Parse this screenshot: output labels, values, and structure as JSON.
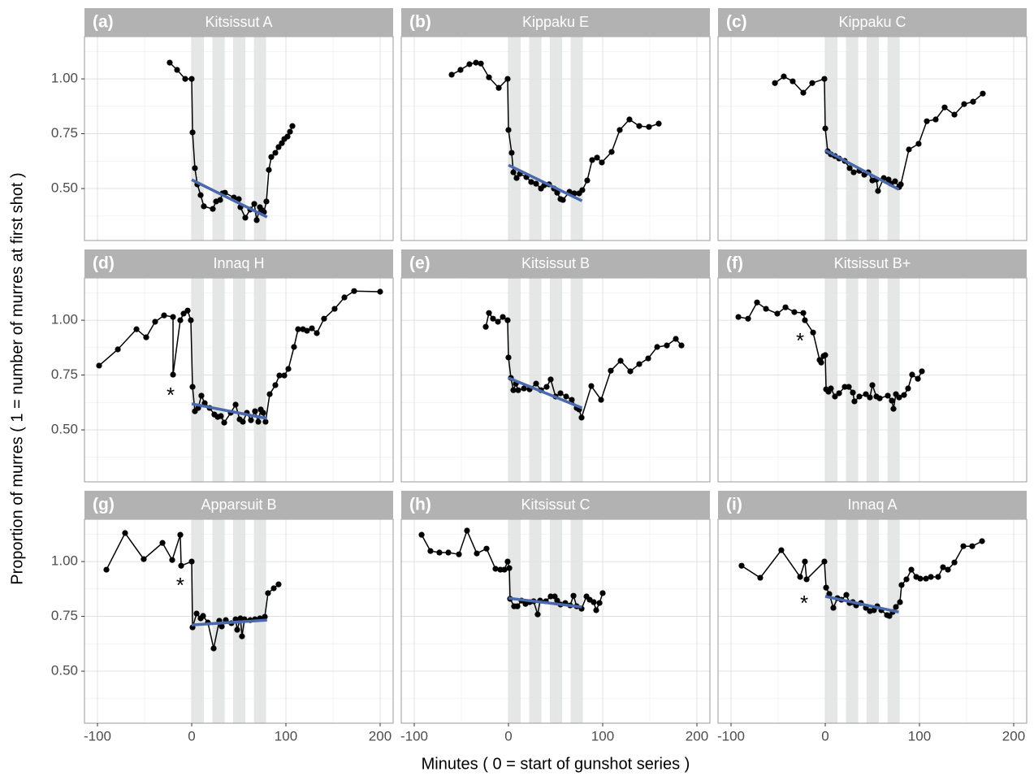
{
  "x_label": "Minutes ( 0 = start of gunshot series )",
  "y_label": "Proportion of murres ( 1 = number of murres at first shot )",
  "xlim": [
    -113.8,
    213.8
  ],
  "ylim": [
    0.263,
    1.193
  ],
  "xticks": [
    -100,
    0,
    100,
    200
  ],
  "yticks": [
    {
      "value": 0.5,
      "label": "0.50"
    },
    {
      "value": 0.75,
      "label": "0.75"
    },
    {
      "value": 1,
      "label": "1.00"
    }
  ],
  "grid": true,
  "shade_color": "#e2e3e3",
  "shaded_intervals": [
    [
      0,
      13
    ],
    [
      22,
      35
    ],
    [
      44,
      57
    ],
    [
      66,
      79
    ]
  ],
  "chart_data": [
    {
      "type": "line",
      "tag": "(a)",
      "title": "Kitsissut A",
      "color": "#000000",
      "x": [
        -23.3,
        -15.5,
        -6.9,
        0,
        0.9,
        3.4,
        6,
        9.5,
        12.9,
        22.4,
        25.9,
        30.2,
        32.8,
        35.3,
        44.8,
        50,
        51.7,
        56.9,
        62.1,
        66.4,
        69,
        72.4,
        75,
        76.7,
        79.3,
        81.9,
        84.5,
        88.8,
        92.2,
        95.7,
        98.3,
        101.7,
        104.3,
        106.9
      ],
      "values": [
        1.074,
        1.041,
        1.0,
        1.0,
        0.756,
        0.593,
        0.519,
        0.47,
        0.419,
        0.407,
        0.441,
        0.448,
        0.478,
        0.481,
        0.459,
        0.452,
        0.415,
        0.367,
        0.404,
        0.43,
        0.356,
        0.415,
        0.4,
        0.393,
        0.441,
        0.585,
        0.644,
        0.663,
        0.689,
        0.707,
        0.726,
        0.737,
        0.759,
        0.785
      ],
      "trend": {
        "color": "#4a6aad",
        "x": [
          0,
          80
        ],
        "y": [
          0.54,
          0.37
        ]
      }
    },
    {
      "type": "line",
      "tag": "(b)",
      "title": "Kippaku E",
      "color": "#000000",
      "x": [
        -60.3,
        -50.9,
        -41.4,
        -34.5,
        -29.3,
        -20.7,
        -10.3,
        -0.9,
        0,
        3.4,
        5.2,
        8.6,
        12.1,
        19,
        24.1,
        29.3,
        34.5,
        37.9,
        43.1,
        48.3,
        51.7,
        55.2,
        57.8,
        64.7,
        69.8,
        75,
        78.4,
        83.6,
        88.8,
        94,
        99.1,
        109.5,
        118.1,
        128.4,
        138.8,
        149.1,
        159.5
      ],
      "values": [
        1.019,
        1.041,
        1.067,
        1.074,
        1.07,
        1.007,
        0.959,
        1.0,
        0.767,
        0.663,
        0.574,
        0.548,
        0.567,
        0.552,
        0.53,
        0.522,
        0.5,
        0.515,
        0.519,
        0.5,
        0.481,
        0.452,
        0.448,
        0.485,
        0.478,
        0.478,
        0.493,
        0.537,
        0.63,
        0.641,
        0.619,
        0.667,
        0.767,
        0.815,
        0.785,
        0.781,
        0.796
      ],
      "trend": {
        "color": "#4a6aad",
        "x": [
          0,
          78
        ],
        "y": [
          0.607,
          0.444
        ]
      }
    },
    {
      "type": "line",
      "tag": "(c)",
      "title": "Kippaku C",
      "color": "#000000",
      "x": [
        -53.4,
        -44,
        -34.5,
        -23.3,
        -13.8,
        -0.9,
        0,
        2.6,
        6,
        10.3,
        14.7,
        20.7,
        25.9,
        30.2,
        36.2,
        41.4,
        45.7,
        50,
        54.3,
        56,
        62.1,
        67.2,
        69.8,
        74.1,
        78.4,
        80.2,
        88.8,
        99.1,
        107.8,
        117.2,
        126.7,
        137.1,
        147.4,
        156.9,
        167.2
      ],
      "values": [
        0.981,
        1.011,
        0.989,
        0.937,
        0.981,
        1.0,
        0.774,
        0.67,
        0.656,
        0.648,
        0.637,
        0.626,
        0.593,
        0.574,
        0.581,
        0.563,
        0.574,
        0.537,
        0.541,
        0.489,
        0.548,
        0.541,
        0.522,
        0.533,
        0.507,
        0.519,
        0.678,
        0.704,
        0.807,
        0.815,
        0.87,
        0.837,
        0.885,
        0.896,
        0.933
      ],
      "trend": {
        "color": "#4a6aad",
        "x": [
          0,
          78
        ],
        "y": [
          0.674,
          0.496
        ]
      }
    },
    {
      "type": "line",
      "tag": "(d)",
      "title": "Innaq H",
      "color": "#000000",
      "x": [
        -98.3,
        -78.4,
        -58.6,
        -48.3,
        -38.8,
        -29.3,
        -19.8,
        -19.8,
        -12.1,
        -8.6,
        -4.3,
        -0.9,
        0.9,
        3.4,
        6.9,
        10.3,
        13.8,
        19,
        24.1,
        27.6,
        31,
        34.5,
        41.4,
        46.6,
        50.9,
        54.3,
        58.6,
        62.9,
        67.2,
        70.7,
        73.3,
        75.9,
        78.4,
        82.8,
        88.8,
        93.1,
        98.3,
        102.6,
        108.6,
        112.9,
        118.1,
        122.4,
        127.6,
        132.8,
        140.5,
        151.7,
        162.1,
        172.4,
        200
      ],
      "values": [
        0.793,
        0.867,
        0.959,
        0.922,
        0.993,
        1.022,
        1.015,
        0.752,
        1.0,
        1.03,
        1.044,
        1.0,
        0.696,
        0.585,
        0.6,
        0.656,
        0.622,
        0.6,
        0.57,
        0.559,
        0.563,
        0.533,
        0.578,
        0.615,
        0.548,
        0.537,
        0.578,
        0.544,
        0.585,
        0.537,
        0.593,
        0.578,
        0.537,
        0.663,
        0.704,
        0.748,
        0.748,
        0.778,
        0.878,
        0.959,
        0.959,
        0.952,
        0.963,
        0.941,
        1.007,
        1.052,
        1.104,
        1.133,
        1.13
      ],
      "trend": {
        "color": "#4a6aad",
        "x": [
          0,
          80
        ],
        "y": [
          0.619,
          0.552
        ]
      },
      "annotations": [
        {
          "text": "*",
          "x": -22.4,
          "y": 0.674
        }
      ]
    },
    {
      "type": "line",
      "tag": "(e)",
      "title": "Kitsissut B",
      "color": "#000000",
      "x": [
        -24.1,
        -20.7,
        -16.4,
        -11.2,
        -6,
        -0.9,
        0,
        2.6,
        5.2,
        7.8,
        10.3,
        16.4,
        22.4,
        29.3,
        34.5,
        40.5,
        44.8,
        50,
        55.2,
        61.2,
        67.2,
        72.4,
        75,
        77.6,
        87.9,
        98.3,
        108.6,
        119,
        129.3,
        138.8,
        148.3,
        157.8,
        168.1,
        177.6,
        183.6
      ],
      "values": [
        0.97,
        1.033,
        1.007,
        0.993,
        1.015,
        1.0,
        0.83,
        0.737,
        0.681,
        0.711,
        0.681,
        0.689,
        0.685,
        0.711,
        0.681,
        0.696,
        0.73,
        0.652,
        0.667,
        0.652,
        0.637,
        0.6,
        0.593,
        0.556,
        0.7,
        0.637,
        0.77,
        0.815,
        0.767,
        0.8,
        0.826,
        0.878,
        0.885,
        0.915,
        0.885
      ],
      "trend": {
        "color": "#4a6aad",
        "x": [
          0,
          78
        ],
        "y": [
          0.737,
          0.6
        ]
      }
    },
    {
      "type": "line",
      "tag": "(f)",
      "title": "Kitsissut B+",
      "color": "#000000",
      "x": [
        -92.2,
        -81.9,
        -72.4,
        -62.9,
        -50.9,
        -42.2,
        -32.8,
        -23.3,
        -21.6,
        -12.9,
        -6,
        -4.3,
        -1.7,
        0,
        0.9,
        3.4,
        6,
        10.3,
        14.7,
        20.7,
        25,
        29.3,
        31,
        36.2,
        43.1,
        47.4,
        50,
        54.3,
        57.8,
        66.4,
        70.7,
        72.4,
        75,
        78.4,
        83.6,
        87.9,
        92.2,
        98.3,
        102.6
      ],
      "values": [
        1.015,
        1.007,
        1.081,
        1.052,
        1.03,
        1.059,
        1.037,
        1.033,
        1.0,
        0.944,
        0.819,
        0.807,
        0.837,
        0.841,
        0.685,
        0.674,
        0.689,
        0.652,
        0.667,
        0.696,
        0.696,
        0.67,
        0.63,
        0.652,
        0.663,
        0.648,
        0.704,
        0.652,
        0.644,
        0.656,
        0.633,
        0.596,
        0.663,
        0.648,
        0.659,
        0.689,
        0.752,
        0.733,
        0.767
      ],
      "annotations": [
        {
          "text": "*",
          "x": -26.7,
          "y": 0.922
        }
      ]
    },
    {
      "type": "line",
      "tag": "(g)",
      "title": "Apparsuit B",
      "color": "#000000",
      "x": [
        -90.5,
        -70.7,
        -50.9,
        -31,
        -20.7,
        -12.1,
        -11.2,
        0,
        0.9,
        5.2,
        9.5,
        12.1,
        17.2,
        23.3,
        29.3,
        31.9,
        36.2,
        42.2,
        46.6,
        48.3,
        51.7,
        53.4,
        56,
        62.1,
        67.2,
        72.4,
        77.6,
        81,
        87.1,
        92.2
      ],
      "values": [
        0.963,
        1.13,
        1.011,
        1.085,
        1.007,
        1.122,
        0.981,
        1.0,
        0.7,
        0.763,
        0.741,
        0.752,
        0.722,
        0.604,
        0.73,
        0.704,
        0.733,
        0.719,
        0.737,
        0.689,
        0.741,
        0.659,
        0.737,
        0.733,
        0.737,
        0.741,
        0.748,
        0.856,
        0.878,
        0.896
      ],
      "trend": {
        "color": "#4a6aad",
        "x": [
          0,
          80
        ],
        "y": [
          0.711,
          0.733
        ]
      },
      "annotations": [
        {
          "text": "*",
          "x": -12.1,
          "y": 0.907
        }
      ]
    },
    {
      "type": "line",
      "tag": "(h)",
      "title": "Kitsissut C",
      "color": "#000000",
      "x": [
        -92.2,
        -82.8,
        -73.3,
        -63.8,
        -52.6,
        -44,
        -33.6,
        -23.3,
        -13.8,
        -8.6,
        -4.3,
        -0.9,
        0.9,
        1.7,
        6,
        9.5,
        13.8,
        18.1,
        22.4,
        26.7,
        31,
        33.6,
        39.7,
        44.8,
        49.1,
        51.7,
        55.2,
        60.3,
        65.5,
        69,
        72.4,
        77.6,
        82.8,
        86.2,
        90.5,
        93.1,
        96.6,
        100
      ],
      "values": [
        1.122,
        1.048,
        1.041,
        1.041,
        1.033,
        1.141,
        1.037,
        1.059,
        0.967,
        0.963,
        0.963,
        1.0,
        0.97,
        0.83,
        0.796,
        0.796,
        0.822,
        0.807,
        0.815,
        0.819,
        0.759,
        0.822,
        0.819,
        0.841,
        0.841,
        0.822,
        0.804,
        0.811,
        0.8,
        0.844,
        0.796,
        0.785,
        0.841,
        0.826,
        0.815,
        0.778,
        0.811,
        0.856
      ],
      "trend": {
        "color": "#4a6aad",
        "x": [
          0,
          78
        ],
        "y": [
          0.833,
          0.793
        ]
      }
    },
    {
      "type": "line",
      "tag": "(i)",
      "title": "Innaq A",
      "color": "#000000",
      "x": [
        -88.8,
        -69,
        -46.6,
        -26.7,
        -21.6,
        -19.8,
        -0.9,
        0.9,
        4.3,
        8.6,
        12.9,
        17.2,
        22.4,
        25.9,
        29.3,
        32.8,
        37.9,
        43.1,
        47.4,
        51.7,
        55.2,
        59.5,
        65.5,
        68.1,
        71.6,
        75,
        79.3,
        81,
        86.2,
        91.4,
        96.6,
        100.9,
        106.9,
        112.1,
        119.8,
        125,
        130.2,
        137.1,
        146.6,
        156,
        166.4
      ],
      "values": [
        0.981,
        0.926,
        1.052,
        0.93,
        1.0,
        0.919,
        1.0,
        0.881,
        0.852,
        0.789,
        0.833,
        0.826,
        0.848,
        0.811,
        0.815,
        0.8,
        0.811,
        0.789,
        0.774,
        0.778,
        0.796,
        0.778,
        0.756,
        0.752,
        0.77,
        0.793,
        0.815,
        0.893,
        0.919,
        0.963,
        0.93,
        0.922,
        0.922,
        0.93,
        0.93,
        0.974,
        0.963,
        0.996,
        1.07,
        1.07,
        1.093
      ],
      "trend": {
        "color": "#4a6aad",
        "x": [
          0,
          78
        ],
        "y": [
          0.841,
          0.77
        ]
      },
      "annotations": [
        {
          "text": "*",
          "x": -22.4,
          "y": 0.826
        }
      ]
    }
  ]
}
